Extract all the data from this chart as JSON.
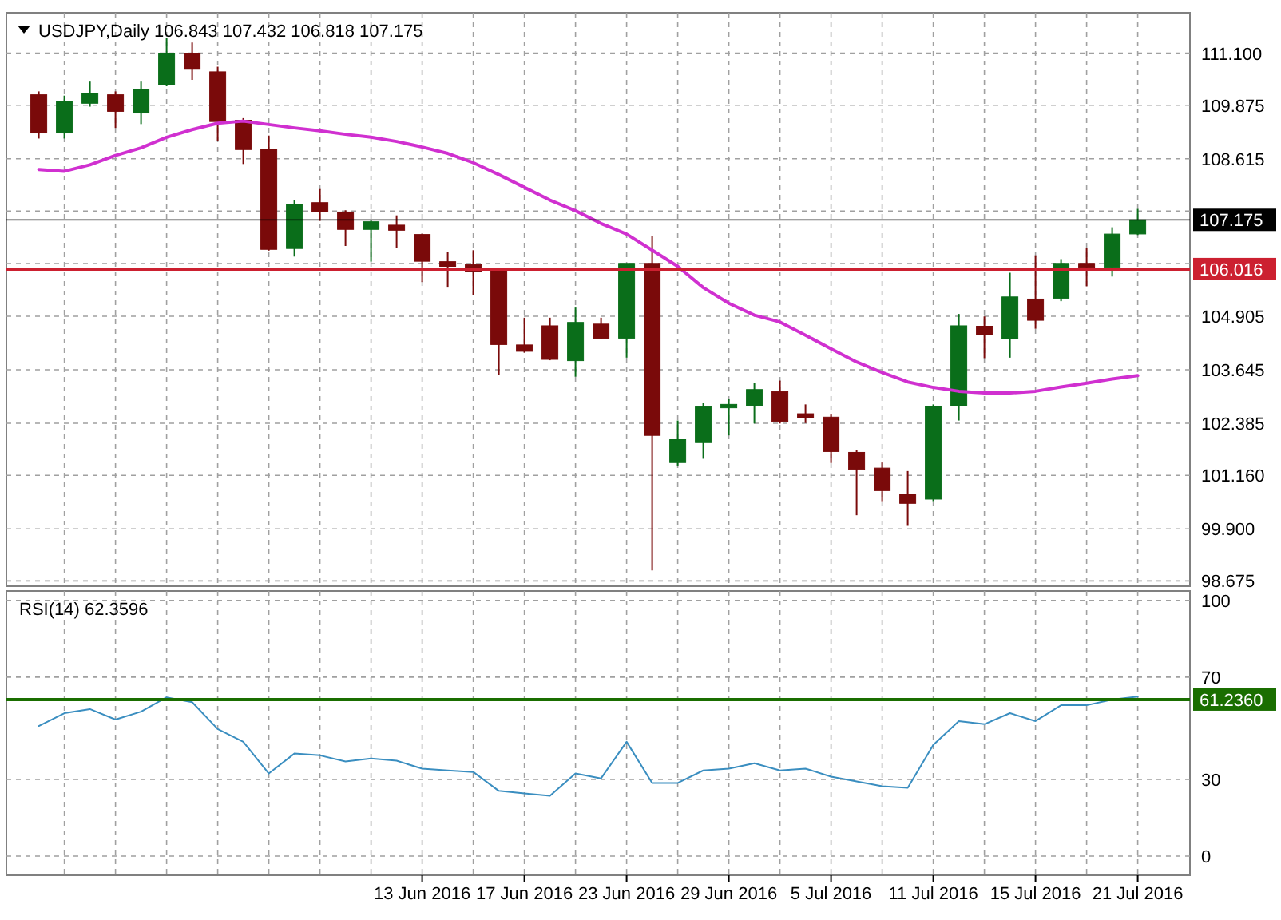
{
  "chart_data": [
    {
      "type": "candlestick",
      "title": "USDJPY,Daily 106.843 107.432 106.818 107.175",
      "categories": [
        null,
        null,
        null,
        null,
        null,
        null,
        null,
        null,
        null,
        null,
        null,
        null,
        null,
        null,
        null,
        null,
        null,
        null,
        null,
        null,
        null,
        null,
        null,
        null,
        null,
        null,
        null,
        null,
        null,
        null,
        null,
        null,
        null,
        null,
        null,
        null,
        null,
        null,
        null,
        null,
        null,
        null,
        null,
        null
      ],
      "ohlc": [
        [
          110.12,
          110.2,
          109.09,
          109.22
        ],
        [
          109.22,
          110.1,
          109.09,
          109.97
        ],
        [
          109.92,
          110.43,
          109.84,
          110.16
        ],
        [
          110.12,
          110.2,
          109.34,
          109.73
        ],
        [
          109.69,
          110.43,
          109.43,
          110.25
        ],
        [
          110.35,
          111.45,
          110.32,
          111.1
        ],
        [
          111.1,
          111.35,
          110.47,
          110.72
        ],
        [
          110.66,
          110.78,
          109.03,
          109.49
        ],
        [
          109.52,
          109.57,
          108.49,
          108.83
        ],
        [
          108.84,
          109.16,
          106.45,
          106.48
        ],
        [
          106.5,
          107.65,
          106.31,
          107.54
        ],
        [
          107.58,
          107.9,
          107.15,
          107.36
        ],
        [
          107.36,
          107.4,
          106.56,
          106.95
        ],
        [
          106.95,
          107.18,
          106.19,
          107.13
        ],
        [
          107.05,
          107.28,
          106.52,
          106.93
        ],
        [
          106.83,
          106.85,
          105.71,
          106.2
        ],
        [
          106.19,
          106.42,
          105.58,
          106.08
        ],
        [
          106.12,
          106.46,
          105.4,
          105.96
        ],
        [
          106.02,
          106.04,
          103.52,
          104.24
        ],
        [
          104.23,
          104.87,
          104.05,
          104.08
        ],
        [
          104.68,
          104.87,
          103.87,
          103.89
        ],
        [
          103.86,
          105.11,
          103.48,
          104.76
        ],
        [
          104.72,
          104.87,
          104.36,
          104.38
        ],
        [
          104.39,
          106.15,
          103.93,
          106.15
        ],
        [
          106.15,
          106.8,
          98.92,
          102.1
        ],
        [
          101.46,
          102.45,
          101.39,
          102.0
        ],
        [
          101.93,
          102.87,
          101.55,
          102.77
        ],
        [
          102.75,
          102.95,
          102.1,
          102.83
        ],
        [
          102.8,
          103.33,
          102.38,
          103.18
        ],
        [
          103.13,
          103.39,
          102.38,
          102.43
        ],
        [
          102.61,
          102.83,
          102.39,
          102.51
        ],
        [
          102.53,
          102.6,
          101.45,
          101.72
        ],
        [
          101.7,
          101.76,
          100.22,
          101.3
        ],
        [
          101.33,
          101.48,
          100.55,
          100.8
        ],
        [
          100.72,
          101.26,
          99.97,
          100.5
        ],
        [
          100.6,
          102.83,
          100.55,
          102.79
        ],
        [
          102.79,
          104.96,
          102.45,
          104.68
        ],
        [
          104.67,
          104.9,
          103.92,
          104.47
        ],
        [
          104.37,
          105.93,
          103.93,
          105.36
        ],
        [
          105.31,
          106.34,
          104.61,
          104.81
        ],
        [
          105.33,
          106.25,
          105.26,
          106.15
        ],
        [
          106.15,
          106.52,
          105.61,
          106.06
        ],
        [
          106.06,
          107.0,
          105.84,
          106.84
        ],
        [
          106.843,
          107.432,
          106.818,
          107.175
        ]
      ],
      "colors": [
        "#7a0a0a",
        "#0a6e1a",
        "#0a6e1a",
        "#7a0a0a",
        "#0a6e1a",
        "#0a6e1a",
        "#7a0a0a",
        "#7a0a0a",
        "#7a0a0a",
        "#7a0a0a",
        "#0a6e1a",
        "#7a0a0a",
        "#7a0a0a",
        "#0a6e1a",
        "#7a0a0a",
        "#7a0a0a",
        "#7a0a0a",
        "#7a0a0a",
        "#7a0a0a",
        "#7a0a0a",
        "#7a0a0a",
        "#0a6e1a",
        "#7a0a0a",
        "#0a6e1a",
        "#7a0a0a",
        "#0a6e1a",
        "#0a6e1a",
        "#0a6e1a",
        "#0a6e1a",
        "#7a0a0a",
        "#7a0a0a",
        "#7a0a0a",
        "#7a0a0a",
        "#7a0a0a",
        "#7a0a0a",
        "#0a6e1a",
        "#0a6e1a",
        "#7a0a0a",
        "#0a6e1a",
        "#7a0a0a",
        "#0a6e1a",
        "#7a0a0a",
        "#0a6e1a",
        "#0a6e1a"
      ],
      "series": [
        {
          "type": "line",
          "color": "#d030d0",
          "values": [
            108.36,
            108.32,
            108.47,
            108.69,
            108.87,
            109.12,
            109.3,
            109.45,
            109.5,
            109.42,
            109.34,
            109.27,
            109.19,
            109.12,
            109.02,
            108.89,
            108.74,
            108.52,
            108.24,
            107.94,
            107.64,
            107.39,
            107.09,
            106.84,
            106.46,
            106.08,
            105.58,
            105.21,
            104.93,
            104.77,
            104.46,
            104.14,
            103.83,
            103.58,
            103.36,
            103.23,
            103.14,
            103.1,
            103.1,
            103.14,
            103.24,
            103.33,
            103.43,
            103.51
          ]
        }
      ],
      "ylim": [
        98.55,
        112.05
      ],
      "yticks": [
        98.675,
        {
          "value": 99.9,
          "label": "99.900"
        },
        {
          "value": 101.16,
          "label": "101.160"
        },
        102.385,
        103.645,
        104.905,
        {
          "value": 106.145,
          "label": null
        },
        {
          "value": 107.38,
          "label": null
        },
        108.615,
        109.875,
        {
          "value": 111.1,
          "label": "111.100"
        }
      ],
      "ref_lines": [
        {
          "axis": "y",
          "value": 107.175,
          "label": "107.175",
          "color": "#000000"
        },
        {
          "axis": "y",
          "value": 106.016,
          "label": "106.016",
          "color": "#cc2030"
        }
      ],
      "grid": true,
      "tick_labels": "y"
    },
    {
      "type": "line",
      "title": "RSI(14) 62.3596",
      "categories": [
        null,
        null,
        null,
        null,
        null,
        null,
        null,
        null,
        null,
        null,
        null,
        null,
        null,
        null,
        null,
        "13 Jun 2016",
        null,
        null,
        null,
        "17 Jun 2016",
        null,
        null,
        null,
        "23 Jun 2016",
        null,
        null,
        null,
        "29 Jun 2016",
        null,
        null,
        null,
        "5 Jul 2016",
        null,
        null,
        null,
        "11 Jul 2016",
        null,
        null,
        null,
        "15 Jul 2016",
        null,
        null,
        null,
        "21 Jul 2016"
      ],
      "series": [
        {
          "color": "#3a8ec0",
          "values": [
            50.9,
            55.9,
            57.5,
            53.4,
            56.5,
            62.1,
            60.2,
            49.7,
            44.7,
            32.3,
            40.1,
            39.4,
            37.0,
            38.2,
            37.3,
            34.2,
            33.5,
            32.9,
            25.5,
            24.5,
            23.6,
            32.3,
            30.4,
            44.7,
            28.6,
            28.6,
            33.5,
            34.2,
            36.3,
            33.5,
            34.2,
            31.1,
            29.2,
            27.3,
            26.7,
            43.5,
            52.8,
            51.6,
            55.9,
            52.8,
            59.0,
            59.0,
            61.2,
            62.3596
          ]
        }
      ],
      "ylim": [
        -7.5,
        103.7
      ],
      "yticks": [
        0,
        30,
        70,
        100
      ],
      "ref_lines": [
        {
          "axis": "y",
          "value": 61.236,
          "label": "61.2360",
          "color": "#1a6e00"
        }
      ],
      "grid": true
    }
  ]
}
